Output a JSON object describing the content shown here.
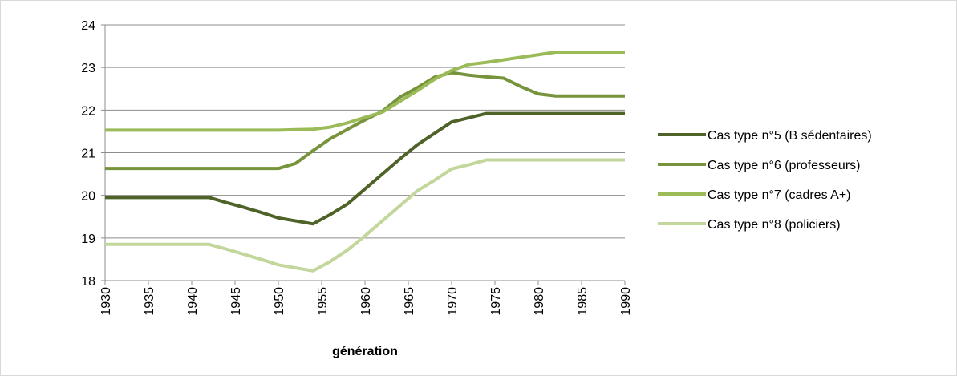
{
  "chart_data": {
    "type": "line",
    "xlabel": "génération",
    "x": [
      1930,
      1932,
      1934,
      1936,
      1938,
      1940,
      1942,
      1944,
      1946,
      1948,
      1950,
      1952,
      1954,
      1956,
      1958,
      1960,
      1962,
      1964,
      1966,
      1968,
      1970,
      1972,
      1974,
      1976,
      1978,
      1980,
      1982,
      1984,
      1986,
      1988,
      1990
    ],
    "xlim": [
      1930,
      1990
    ],
    "xticks": [
      1930,
      1935,
      1940,
      1945,
      1950,
      1955,
      1960,
      1965,
      1970,
      1975,
      1980,
      1985,
      1990
    ],
    "ylim": [
      18,
      24
    ],
    "yticks": [
      18,
      19,
      20,
      21,
      22,
      23,
      24
    ],
    "grid": true,
    "legend": "right",
    "series": [
      {
        "name": "Cas type n°5 (B sédentaires)",
        "color": "#4f6228",
        "values": [
          19.95,
          19.95,
          19.95,
          19.95,
          19.95,
          19.95,
          19.95,
          19.83,
          19.72,
          19.6,
          19.47,
          19.4,
          19.33,
          19.55,
          19.8,
          20.15,
          20.5,
          20.85,
          21.18,
          21.45,
          21.72,
          21.82,
          21.92,
          21.92,
          21.92,
          21.92,
          21.92,
          21.92,
          21.92,
          21.92,
          21.92
        ]
      },
      {
        "name": "Cas type n°6 (professeurs)",
        "color": "#77933c",
        "values": [
          20.63,
          20.63,
          20.63,
          20.63,
          20.63,
          20.63,
          20.63,
          20.63,
          20.63,
          20.63,
          20.63,
          20.75,
          21.05,
          21.33,
          21.55,
          21.77,
          21.97,
          22.3,
          22.52,
          22.77,
          22.88,
          22.82,
          22.78,
          22.75,
          22.55,
          22.38,
          22.33,
          22.33,
          22.33,
          22.33,
          22.33
        ]
      },
      {
        "name": "Cas type n°7 (cadres A+)",
        "color": "#9bbb59",
        "values": [
          21.53,
          21.53,
          21.53,
          21.53,
          21.53,
          21.53,
          21.53,
          21.53,
          21.53,
          21.53,
          21.53,
          21.54,
          21.55,
          21.6,
          21.7,
          21.83,
          21.95,
          22.2,
          22.45,
          22.72,
          22.93,
          23.07,
          23.12,
          23.18,
          23.24,
          23.3,
          23.36,
          23.36,
          23.36,
          23.36,
          23.36
        ]
      },
      {
        "name": "Cas type n°8 (policiers)",
        "color": "#c3d69b",
        "values": [
          18.85,
          18.85,
          18.85,
          18.85,
          18.85,
          18.85,
          18.85,
          18.74,
          18.62,
          18.5,
          18.37,
          18.3,
          18.23,
          18.45,
          18.72,
          19.05,
          19.4,
          19.75,
          20.1,
          20.35,
          20.62,
          20.72,
          20.83,
          20.83,
          20.83,
          20.83,
          20.83,
          20.83,
          20.83,
          20.83,
          20.83
        ]
      }
    ]
  }
}
